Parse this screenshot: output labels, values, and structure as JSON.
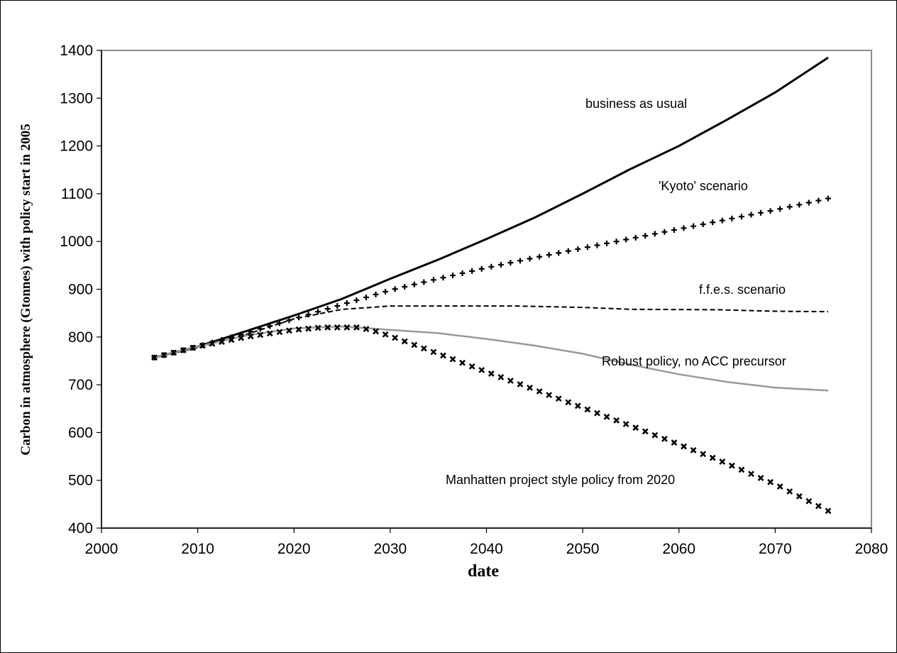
{
  "chart_data": {
    "type": "line",
    "title": "",
    "xlabel": "date",
    "ylabel": "Carbon in atmosphere (Gtonnes) with policy start in 2005",
    "xlim": [
      2000,
      2080
    ],
    "ylim": [
      400,
      1400
    ],
    "xticks": [
      2000,
      2010,
      2020,
      2030,
      2040,
      2050,
      2060,
      2070,
      2080
    ],
    "yticks": [
      400,
      500,
      600,
      700,
      800,
      900,
      1000,
      1100,
      1200,
      1300,
      1400
    ],
    "grid": false,
    "legend": "none",
    "series": [
      {
        "name": "business as usual",
        "style": "solid-black",
        "color": "#000000",
        "points": [
          [
            2005.5,
            757
          ],
          [
            2010,
            780
          ],
          [
            2015,
            812
          ],
          [
            2020,
            845
          ],
          [
            2025,
            880
          ],
          [
            2030,
            922
          ],
          [
            2035,
            962
          ],
          [
            2040,
            1005
          ],
          [
            2045,
            1050
          ],
          [
            2050,
            1100
          ],
          [
            2055,
            1152
          ],
          [
            2060,
            1200
          ],
          [
            2065,
            1255
          ],
          [
            2070,
            1312
          ],
          [
            2075.5,
            1385
          ]
        ]
      },
      {
        "name": "'Kyoto' scenario",
        "style": "plus-markers",
        "color": "#000000",
        "points": [
          [
            2005.5,
            757
          ],
          [
            2010,
            780
          ],
          [
            2015,
            808
          ],
          [
            2020,
            838
          ],
          [
            2025,
            868
          ],
          [
            2030,
            898
          ],
          [
            2035,
            922
          ],
          [
            2040,
            945
          ],
          [
            2045,
            966
          ],
          [
            2050,
            986
          ],
          [
            2055,
            1006
          ],
          [
            2060,
            1026
          ],
          [
            2065,
            1046
          ],
          [
            2070,
            1066
          ],
          [
            2075.5,
            1090
          ]
        ]
      },
      {
        "name": "f.f.e.s. scenario",
        "style": "dashed",
        "color": "#000000",
        "points": [
          [
            2005.5,
            757
          ],
          [
            2010,
            778
          ],
          [
            2015,
            805
          ],
          [
            2020,
            838
          ],
          [
            2025,
            858
          ],
          [
            2028,
            862
          ],
          [
            2030,
            865
          ],
          [
            2043,
            865
          ],
          [
            2050,
            862
          ],
          [
            2055,
            858
          ],
          [
            2064,
            857
          ],
          [
            2070,
            854
          ],
          [
            2075.5,
            853
          ]
        ]
      },
      {
        "name": "Robust policy, no ACC precursor",
        "style": "solid-gray",
        "color": "#999999",
        "points": [
          [
            2005.5,
            757
          ],
          [
            2010,
            780
          ],
          [
            2015,
            803
          ],
          [
            2020,
            818
          ],
          [
            2025,
            822
          ],
          [
            2028,
            818
          ],
          [
            2030,
            815
          ],
          [
            2035,
            808
          ],
          [
            2040,
            796
          ],
          [
            2045,
            782
          ],
          [
            2050,
            765
          ],
          [
            2055,
            742
          ],
          [
            2060,
            722
          ],
          [
            2065,
            706
          ],
          [
            2070,
            694
          ],
          [
            2075.5,
            688
          ]
        ]
      },
      {
        "name": "Manhatten project style policy from 2020",
        "style": "x-markers",
        "color": "#000000",
        "points": [
          [
            2005.5,
            757
          ],
          [
            2010,
            780
          ],
          [
            2015,
            800
          ],
          [
            2020,
            815
          ],
          [
            2023,
            820
          ],
          [
            2026.5,
            820
          ],
          [
            2028,
            815
          ],
          [
            2030,
            802
          ],
          [
            2035,
            765
          ],
          [
            2040,
            727
          ],
          [
            2045,
            690
          ],
          [
            2050,
            652
          ],
          [
            2055,
            614
          ],
          [
            2060,
            575
          ],
          [
            2065,
            535
          ],
          [
            2070,
            492
          ],
          [
            2075.5,
            436
          ]
        ]
      }
    ]
  },
  "annotations": {
    "business_as_usual": "business as usual",
    "kyoto": "'Kyoto' scenario",
    "ffes": "f.f.e.s. scenario",
    "robust": "Robust policy, no ACC precursor",
    "manhatten": "Manhatten project style policy from 2020"
  }
}
